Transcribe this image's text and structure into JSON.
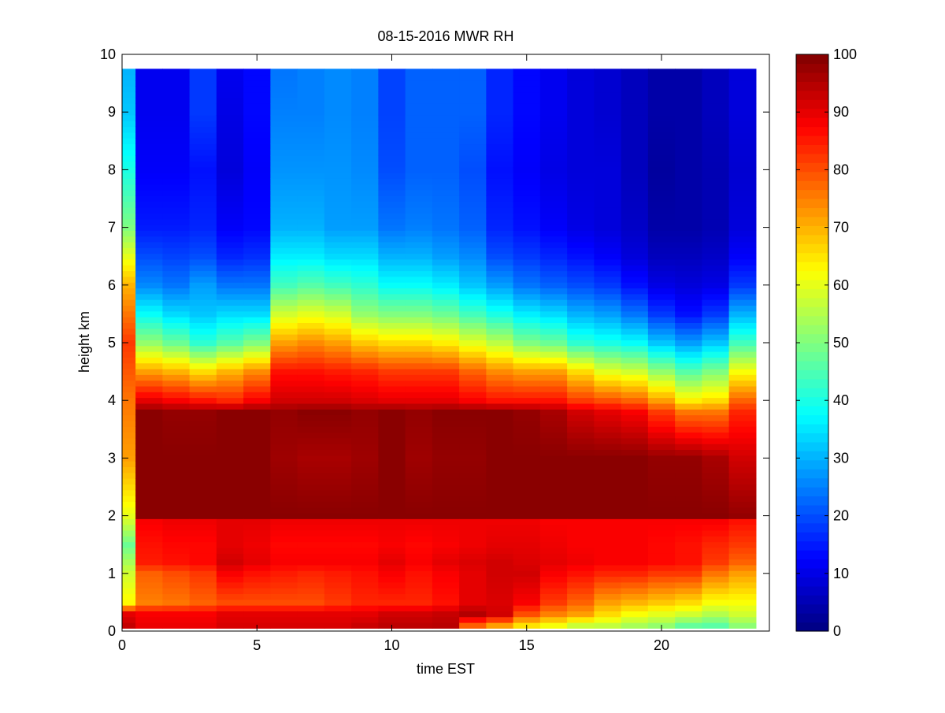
{
  "chart_data": {
    "type": "heatmap",
    "title": "08-15-2016 MWR RH",
    "xlabel": "time EST",
    "ylabel": "height km",
    "xlim": [
      0,
      24
    ],
    "ylim": [
      0,
      10
    ],
    "xticks": [
      0,
      5,
      10,
      15,
      20
    ],
    "yticks": [
      0,
      1,
      2,
      3,
      4,
      5,
      6,
      7,
      8,
      9,
      10
    ],
    "colorbar": {
      "range": [
        0,
        100
      ],
      "ticks": [
        0,
        10,
        20,
        30,
        40,
        50,
        60,
        70,
        80,
        90,
        100
      ],
      "colormap": "jet"
    },
    "grid": false,
    "time_hours": [
      0,
      1,
      2,
      3,
      4,
      5,
      6,
      7,
      8,
      9,
      10,
      11,
      12,
      13,
      14,
      15,
      16,
      17,
      18,
      19,
      20,
      21,
      22,
      23
    ],
    "heights_km": [
      0.1,
      0.2,
      0.3,
      0.4,
      0.5,
      0.6,
      0.7,
      0.8,
      0.9,
      1.0,
      1.1,
      1.2,
      1.3,
      1.4,
      1.5,
      1.6,
      1.7,
      1.8,
      1.9,
      2.0,
      2.1,
      2.2,
      2.3,
      2.4,
      2.5,
      2.6,
      2.7,
      2.8,
      2.9,
      3.0,
      3.1,
      3.2,
      3.3,
      3.4,
      3.5,
      3.6,
      3.7,
      3.8,
      3.9,
      4.0,
      4.1,
      4.2,
      4.3,
      4.4,
      4.5,
      4.6,
      4.7,
      4.8,
      4.9,
      5.0,
      5.1,
      5.2,
      5.3,
      5.4,
      5.5,
      5.6,
      5.7,
      5.8,
      5.9,
      6.0,
      6.1,
      6.2,
      6.3,
      6.4,
      6.5,
      6.6,
      6.7,
      6.8,
      6.9,
      7.0,
      7.1,
      7.2,
      7.3,
      7.4,
      7.5,
      7.6,
      7.7,
      7.8,
      7.9,
      8.0,
      8.1,
      8.2,
      8.3,
      8.4,
      8.5,
      8.6,
      8.7,
      8.8,
      8.9,
      9.0,
      9.1,
      9.2,
      9.3,
      9.4,
      9.5,
      9.6,
      9.7
    ],
    "rh_profiles": [
      {
        "z": [
          0,
          0.3,
          0.5,
          1,
          1.5,
          2,
          3,
          4,
          5,
          6,
          7,
          8,
          9,
          9.75
        ],
        "v": [
          95,
          90,
          63,
          58,
          48,
          60,
          72,
          76,
          82,
          70,
          50,
          40,
          32,
          30
        ]
      },
      {
        "z": [
          0,
          0.3,
          0.5,
          1,
          1.2,
          1.5,
          1.9,
          2,
          3,
          3.8,
          4.0,
          4.5,
          5,
          5.5,
          6,
          6.5,
          7,
          8,
          9,
          9.75
        ],
        "v": [
          90,
          88,
          75,
          78,
          85,
          86,
          88,
          99,
          99,
          99,
          90,
          72,
          52,
          38,
          26,
          20,
          15,
          12,
          11,
          11
        ]
      },
      {
        "z": [
          0,
          0.3,
          0.5,
          1,
          1.2,
          1.5,
          1.9,
          2,
          3,
          3.8,
          4.0,
          4.5,
          5,
          5.5,
          6,
          6.5,
          7,
          8,
          9,
          9.75
        ],
        "v": [
          90,
          88,
          76,
          80,
          86,
          87,
          89,
          99,
          99,
          98,
          88,
          70,
          48,
          34,
          24,
          19,
          15,
          12,
          11,
          11
        ]
      },
      {
        "z": [
          0,
          0.3,
          0.5,
          1,
          1.2,
          1.5,
          1.9,
          2,
          3,
          3.8,
          4.0,
          4.5,
          5,
          5.5,
          6,
          6.5,
          7,
          8,
          9,
          9.75
        ],
        "v": [
          90,
          88,
          78,
          82,
          87,
          87,
          89,
          99,
          99,
          98,
          86,
          66,
          42,
          32,
          28,
          20,
          16,
          14,
          18,
          18
        ]
      },
      {
        "z": [
          0,
          0.3,
          0.5,
          1,
          1.2,
          1.5,
          1.9,
          2,
          3,
          3.8,
          4.0,
          4.5,
          5,
          5.5,
          6,
          6.5,
          7,
          8,
          9,
          9.75
        ],
        "v": [
          92,
          90,
          80,
          88,
          92,
          90,
          90,
          99,
          99,
          99,
          84,
          70,
          46,
          34,
          24,
          16,
          12,
          9,
          10,
          11
        ]
      },
      {
        "z": [
          0,
          0.3,
          0.5,
          1,
          1.2,
          1.5,
          1.9,
          2,
          3,
          3.8,
          4.0,
          4.5,
          5,
          5.5,
          6,
          6.5,
          7,
          8,
          9,
          9.75
        ],
        "v": [
          92,
          90,
          80,
          86,
          90,
          89,
          90,
          99,
          99,
          99,
          88,
          74,
          50,
          34,
          24,
          17,
          13,
          12,
          13,
          13
        ]
      },
      {
        "z": [
          0,
          0.3,
          0.5,
          1,
          1.2,
          1.5,
          1.9,
          2,
          3,
          3.8,
          4.0,
          4.5,
          5,
          5.5,
          6,
          6.5,
          7,
          8,
          9,
          9.75
        ],
        "v": [
          92,
          90,
          80,
          85,
          88,
          87,
          89,
          99,
          97,
          98,
          92,
          86,
          72,
          58,
          44,
          36,
          30,
          27,
          25,
          24
        ]
      },
      {
        "z": [
          0,
          0.3,
          0.5,
          1,
          1.2,
          1.5,
          1.9,
          2,
          3,
          3.8,
          4.0,
          4.5,
          5,
          5.5,
          6,
          6.5,
          7,
          8,
          9,
          9.75
        ],
        "v": [
          92,
          90,
          80,
          84,
          88,
          87,
          89,
          99,
          96,
          99,
          92,
          86,
          74,
          60,
          46,
          36,
          30,
          27,
          25,
          25
        ]
      },
      {
        "z": [
          0,
          0.3,
          0.5,
          1,
          1.2,
          1.5,
          1.9,
          2,
          3,
          3.8,
          4.0,
          4.5,
          5,
          5.5,
          6,
          6.5,
          7,
          8,
          9,
          9.75
        ],
        "v": [
          92,
          90,
          82,
          85,
          88,
          87,
          89,
          99,
          96,
          99,
          92,
          85,
          72,
          58,
          44,
          34,
          28,
          27,
          26,
          26
        ]
      },
      {
        "z": [
          0,
          0.3,
          0.5,
          1,
          1.2,
          1.5,
          1.9,
          2,
          3,
          3.8,
          4.0,
          4.5,
          5,
          5.5,
          6,
          6.5,
          7,
          8,
          9,
          9.75
        ],
        "v": [
          94,
          90,
          84,
          86,
          88,
          87,
          89,
          99,
          97,
          98,
          91,
          84,
          68,
          52,
          42,
          34,
          28,
          26,
          25,
          25
        ]
      },
      {
        "z": [
          0,
          0.3,
          0.5,
          1,
          1.2,
          1.5,
          1.9,
          2,
          3,
          3.8,
          4.0,
          4.5,
          5,
          5.5,
          6,
          6.5,
          7,
          8,
          9,
          9.75
        ],
        "v": [
          95,
          92,
          84,
          88,
          90,
          88,
          89,
          99,
          99,
          99,
          90,
          82,
          66,
          50,
          38,
          30,
          24,
          20,
          19,
          19
        ]
      },
      {
        "z": [
          0,
          0.3,
          0.5,
          1,
          1.2,
          1.5,
          1.9,
          2,
          3,
          3.8,
          4.0,
          4.5,
          5,
          5.5,
          6,
          6.5,
          7,
          8,
          9,
          9.75
        ],
        "v": [
          95,
          92,
          84,
          86,
          88,
          87,
          89,
          99,
          97,
          98,
          90,
          82,
          66,
          50,
          38,
          30,
          25,
          22,
          22,
          22
        ]
      },
      {
        "z": [
          0,
          0.3,
          0.5,
          1,
          1.2,
          1.5,
          1.9,
          2,
          3,
          3.8,
          4.0,
          4.5,
          5,
          5.5,
          6,
          6.5,
          7,
          8,
          9,
          9.75
        ],
        "v": [
          95,
          93,
          86,
          88,
          90,
          88,
          89,
          99,
          98,
          99,
          90,
          82,
          64,
          48,
          36,
          28,
          24,
          22,
          22,
          22
        ]
      },
      {
        "z": [
          0,
          0.3,
          0.5,
          1,
          1.2,
          1.5,
          1.9,
          2,
          3,
          3.8,
          4.0,
          4.5,
          5,
          5.5,
          6,
          6.5,
          7,
          8,
          9,
          9.75
        ],
        "v": [
          70,
          95,
          90,
          90,
          91,
          89,
          89,
          99,
          98,
          99,
          88,
          78,
          60,
          44,
          32,
          26,
          22,
          20,
          22,
          22
        ]
      },
      {
        "z": [
          0,
          0.3,
          0.5,
          1,
          1.2,
          1.5,
          1.9,
          2,
          3,
          3.8,
          4.0,
          4.5,
          5,
          5.5,
          6,
          6.5,
          7,
          8,
          9,
          9.75
        ],
        "v": [
          62,
          92,
          91,
          92,
          92,
          90,
          89,
          99,
          99,
          99,
          86,
          74,
          56,
          40,
          28,
          20,
          16,
          14,
          16,
          16
        ]
      },
      {
        "z": [
          0,
          0.3,
          0.5,
          1,
          1.2,
          1.5,
          1.9,
          2,
          3,
          3.8,
          4.0,
          4.5,
          5,
          5.5,
          6,
          6.5,
          7,
          8,
          9,
          9.75
        ],
        "v": [
          58,
          80,
          88,
          92,
          91,
          90,
          89,
          99,
          99,
          98,
          86,
          72,
          50,
          36,
          24,
          18,
          14,
          12,
          13,
          13
        ]
      },
      {
        "z": [
          0,
          0.3,
          0.5,
          1,
          1.2,
          1.5,
          1.9,
          2,
          3,
          3.8,
          4.0,
          4.5,
          5,
          5.5,
          6,
          6.5,
          7,
          8,
          9,
          9.75
        ],
        "v": [
          55,
          75,
          82,
          88,
          90,
          89,
          88,
          99,
          99,
          96,
          86,
          72,
          48,
          34,
          22,
          16,
          12,
          10,
          11,
          11
        ]
      },
      {
        "z": [
          0,
          0.3,
          0.5,
          1,
          1.2,
          1.5,
          1.9,
          2,
          3,
          3.8,
          4.0,
          4.5,
          5,
          5.5,
          6,
          6.5,
          7,
          8,
          9,
          9.75
        ],
        "v": [
          50,
          72,
          78,
          86,
          89,
          88,
          88,
          99,
          99,
          92,
          82,
          66,
          42,
          30,
          20,
          14,
          10,
          9,
          9,
          9
        ]
      },
      {
        "z": [
          0,
          0.3,
          0.5,
          1,
          1.2,
          1.5,
          1.9,
          2,
          3,
          3.8,
          4.0,
          4.5,
          5,
          5.5,
          6,
          6.5,
          7,
          8,
          9,
          9.75
        ],
        "v": [
          52,
          66,
          72,
          84,
          88,
          88,
          88,
          99,
          99,
          90,
          80,
          60,
          40,
          28,
          18,
          12,
          9,
          9,
          8,
          8
        ]
      },
      {
        "z": [
          0,
          0.3,
          0.5,
          1,
          1.2,
          1.5,
          1.9,
          2,
          3,
          3.8,
          4.0,
          4.5,
          5,
          5.5,
          6,
          6.5,
          7,
          8,
          9,
          9.75
        ],
        "v": [
          50,
          62,
          70,
          84,
          88,
          88,
          88,
          99,
          99,
          88,
          78,
          58,
          38,
          24,
          14,
          9,
          7,
          6,
          6,
          6
        ]
      },
      {
        "z": [
          0,
          0.3,
          0.5,
          1,
          1.2,
          1.5,
          1.9,
          2,
          3,
          3.8,
          4.0,
          4.5,
          5,
          5.5,
          6,
          6.5,
          7,
          8,
          9,
          9.75
        ],
        "v": [
          48,
          60,
          68,
          82,
          87,
          87,
          88,
          99,
          98,
          82,
          72,
          52,
          32,
          18,
          10,
          6,
          4,
          3,
          4,
          4
        ]
      },
      {
        "z": [
          0,
          0.3,
          0.5,
          1,
          1.2,
          1.5,
          1.9,
          2,
          3,
          3.8,
          4.0,
          4.5,
          5,
          5.5,
          6,
          6.5,
          7,
          8,
          9,
          9.75
        ],
        "v": [
          42,
          58,
          66,
          82,
          86,
          86,
          88,
          99,
          98,
          76,
          64,
          46,
          28,
          14,
          9,
          6,
          4,
          4,
          4,
          4
        ]
      },
      {
        "z": [
          0,
          0.3,
          0.5,
          1,
          1.2,
          1.5,
          1.9,
          2,
          3,
          3.8,
          4.0,
          4.5,
          5,
          5.5,
          6,
          6.5,
          7,
          8,
          9,
          9.75
        ],
        "v": [
          42,
          55,
          62,
          76,
          82,
          84,
          88,
          99,
          96,
          76,
          66,
          50,
          32,
          18,
          10,
          7,
          5,
          5,
          6,
          6
        ]
      },
      {
        "z": [
          0,
          0.3,
          0.5,
          1,
          1.2,
          1.5,
          1.9,
          2,
          3,
          3.8,
          4.0,
          4.5,
          5,
          5.5,
          6,
          6.5,
          7,
          8,
          9,
          9.75
        ],
        "v": [
          48,
          58,
          62,
          72,
          78,
          82,
          86,
          98,
          92,
          84,
          78,
          62,
          44,
          30,
          18,
          12,
          9,
          8,
          9,
          9
        ]
      }
    ]
  }
}
